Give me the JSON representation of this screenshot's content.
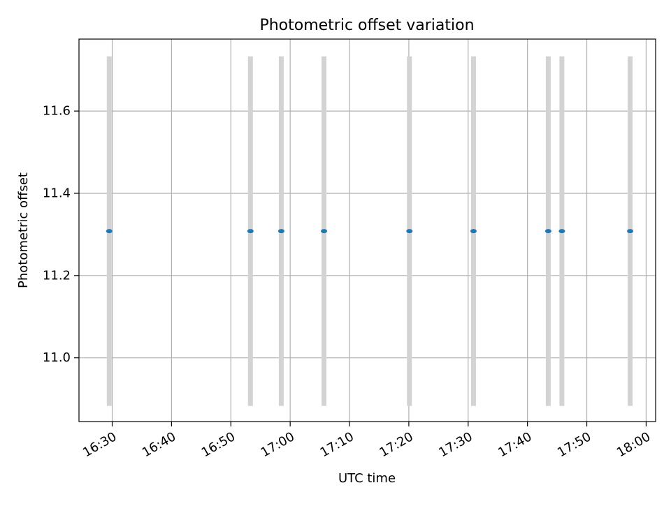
{
  "chart_data": {
    "type": "scatter",
    "title": "Photometric offset variation",
    "xlabel": "UTC time",
    "ylabel": "Photometric offset",
    "x_type": "time",
    "xlim": [
      "16:24:24",
      "18:01:36"
    ],
    "ylim": [
      10.845,
      11.775
    ],
    "grid": true,
    "x_ticks": [
      "16:30",
      "16:40",
      "16:50",
      "17:00",
      "17:10",
      "17:20",
      "17:30",
      "17:40",
      "17:50",
      "18:00"
    ],
    "y_ticks": [
      11.0,
      11.2,
      11.4,
      11.6
    ],
    "y_tick_labels": [
      "11.0",
      "11.2",
      "11.4",
      "11.6"
    ],
    "series": [
      {
        "x": [
          "16:29:30",
          "16:53:18",
          "16:58:30",
          "17:05:42",
          "17:20:06",
          "17:30:54",
          "17:43:30",
          "17:45:48",
          "17:57:18"
        ],
        "y": [
          11.308,
          11.308,
          11.308,
          11.308,
          11.308,
          11.308,
          11.308,
          11.308,
          11.308
        ],
        "y_err": [
          0.425,
          0.425,
          0.425,
          0.425,
          0.425,
          0.425,
          0.425,
          0.425,
          0.425
        ],
        "color": "#1f77b4",
        "error_color": "#d3d3d3"
      }
    ]
  }
}
